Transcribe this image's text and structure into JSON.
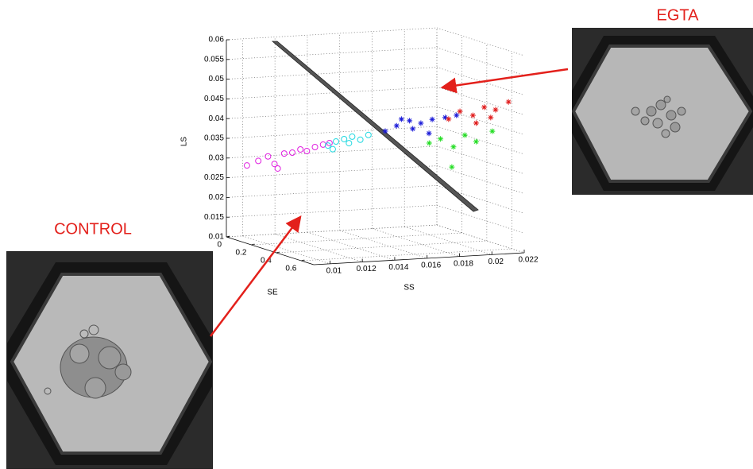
{
  "chart_data": {
    "type": "scatter3d",
    "xlabel": "SS",
    "ylabel": "SE",
    "zlabel": "LS",
    "xlim": [
      0.009,
      0.022
    ],
    "xticks": [
      0.01,
      0.012,
      0.014,
      0.016,
      0.018,
      0.02,
      0.022
    ],
    "ylim": [
      0,
      0.7
    ],
    "yticks": [
      0,
      0.2,
      0.4,
      0.6
    ],
    "zlim": [
      0.01,
      0.06
    ],
    "zticks": [
      0.01,
      0.015,
      0.02,
      0.025,
      0.03,
      0.035,
      0.04,
      0.045,
      0.05,
      0.055,
      0.06
    ],
    "grid": true,
    "series": [
      {
        "color": "#e020e0",
        "marker": "circle",
        "x": [
          0.0095,
          0.0102,
          0.0108,
          0.0112,
          0.0118,
          0.0123,
          0.0128,
          0.0132,
          0.0137,
          0.0142,
          0.0146,
          0.0114
        ],
        "y": [
          0.1,
          0.1,
          0.1,
          0.1,
          0.1,
          0.1,
          0.1,
          0.1,
          0.1,
          0.1,
          0.1,
          0.1
        ],
        "z": [
          0.029,
          0.03,
          0.031,
          0.029,
          0.0315,
          0.0316,
          0.0323,
          0.0318,
          0.0327,
          0.0332,
          0.0335,
          0.0278
        ]
      },
      {
        "color": "#20d8e0",
        "marker": "circle",
        "x": [
          0.0145,
          0.015,
          0.0155,
          0.016,
          0.0165,
          0.017,
          0.0148,
          0.0158
        ],
        "y": [
          0.1,
          0.1,
          0.1,
          0.1,
          0.1,
          0.1,
          0.1,
          0.1
        ],
        "z": [
          0.0329,
          0.0338,
          0.0343,
          0.0348,
          0.0339,
          0.035,
          0.0319,
          0.0332
        ]
      },
      {
        "color": "#1a1ad8",
        "marker": "star",
        "x": [
          0.0165,
          0.0172,
          0.018,
          0.0187,
          0.0194,
          0.0202,
          0.0209,
          0.0182,
          0.0192,
          0.0175
        ],
        "y": [
          0.3,
          0.3,
          0.3,
          0.3,
          0.3,
          0.3,
          0.3,
          0.3,
          0.3,
          0.3
        ],
        "z": [
          0.0381,
          0.0393,
          0.0404,
          0.0396,
          0.0404,
          0.0407,
          0.0411,
          0.0383,
          0.0369,
          0.0409
        ]
      },
      {
        "color": "#e01a1a",
        "marker": "star",
        "x": [
          0.0181,
          0.0188,
          0.0196,
          0.0203,
          0.021,
          0.0218,
          0.0198,
          0.0207
        ],
        "y": [
          0.6,
          0.6,
          0.6,
          0.6,
          0.6,
          0.6,
          0.6,
          0.6
        ],
        "z": [
          0.0438,
          0.0456,
          0.0444,
          0.0463,
          0.0455,
          0.0473,
          0.0424,
          0.0436
        ]
      },
      {
        "color": "#22dd22",
        "marker": "star",
        "x": [
          0.0169,
          0.0176,
          0.0184,
          0.0191,
          0.0198,
          0.0208,
          0.0183
        ],
        "y": [
          0.6,
          0.6,
          0.6,
          0.6,
          0.6,
          0.6,
          0.6
        ],
        "z": [
          0.038,
          0.0389,
          0.0367,
          0.0395,
          0.0377,
          0.0401,
          0.0316
        ]
      }
    ],
    "annotations": [
      "EGTA",
      "CONTROL"
    ]
  }
}
